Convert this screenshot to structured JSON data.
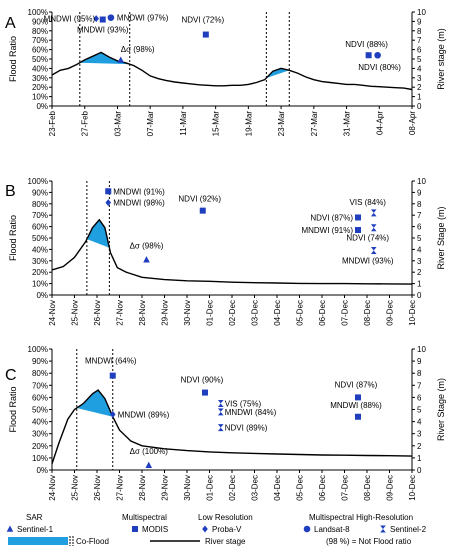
{
  "colors": {
    "fill": "#1f9fe0",
    "marker": "#1f3fbf",
    "line": "#000000"
  },
  "chart_data": [
    {
      "panel": "A",
      "type": "line",
      "ylabel": "Flood Ratio",
      "y2label": "River stage (m)",
      "ylim": [
        0,
        100
      ],
      "y2lim": [
        0,
        10
      ],
      "ytick_labels": [
        "0%",
        "10%",
        "20%",
        "30%",
        "40%",
        "50%",
        "60%",
        "70%",
        "80%",
        "90%",
        "100%"
      ],
      "y2tick_labels": [
        "0",
        "1",
        "2",
        "3",
        "4",
        "5",
        "6",
        "7",
        "8",
        "9",
        "10"
      ],
      "xlim": [
        0,
        44
      ],
      "xtick_pos": [
        0,
        4,
        8,
        12,
        16,
        20,
        24,
        28,
        32,
        36,
        40,
        44
      ],
      "xtick_labels": [
        "23-Feb",
        "27-Feb",
        "03-Mar",
        "07-Mar",
        "11-Mar",
        "15-Mar",
        "19-Mar",
        "23-Mar",
        "27-Mar",
        "31-Mar",
        "04-Apr",
        "08-Apr"
      ],
      "river_stage": [
        [
          0,
          3.3
        ],
        [
          1,
          3.8
        ],
        [
          2,
          4.0
        ],
        [
          3,
          4.4
        ],
        [
          4,
          4.9
        ],
        [
          5,
          5.3
        ],
        [
          6,
          5.7
        ],
        [
          7,
          5.2
        ],
        [
          8,
          4.8
        ],
        [
          9,
          4.6
        ],
        [
          10,
          4.3
        ],
        [
          11,
          3.8
        ],
        [
          12,
          3.2
        ],
        [
          13,
          2.9
        ],
        [
          14,
          2.7
        ],
        [
          15,
          2.55
        ],
        [
          16,
          2.45
        ],
        [
          17,
          2.35
        ],
        [
          18,
          2.25
        ],
        [
          19,
          2.2
        ],
        [
          20,
          2.15
        ],
        [
          21,
          2.15
        ],
        [
          22,
          2.2
        ],
        [
          23,
          2.2
        ],
        [
          24,
          2.3
        ],
        [
          25,
          2.5
        ],
        [
          26,
          2.8
        ],
        [
          27,
          3.7
        ],
        [
          28,
          4.0
        ],
        [
          29,
          3.8
        ],
        [
          30,
          3.5
        ],
        [
          31,
          3.1
        ],
        [
          32,
          2.8
        ],
        [
          33,
          2.6
        ],
        [
          34,
          2.5
        ],
        [
          35,
          2.4
        ],
        [
          36,
          2.3
        ],
        [
          37,
          2.3
        ],
        [
          38,
          2.2
        ],
        [
          39,
          2.1
        ],
        [
          40,
          2.05
        ],
        [
          41,
          2.0
        ],
        [
          42,
          1.95
        ],
        [
          43,
          1.9
        ],
        [
          44,
          1.75
        ]
      ],
      "coflood_windows": [
        [
          3.4,
          9.5
        ],
        [
          26.2,
          29.0
        ]
      ],
      "observations": [
        {
          "x": 5.4,
          "y": 93,
          "marker": "diamond",
          "label": "MNDWI (95%)",
          "anchor": "end",
          "dx": -1,
          "dy": 3
        },
        {
          "x": 6.2,
          "y": 92,
          "marker": "square",
          "label": "MNDWI (93%)",
          "anchor": "middle",
          "dx": 0,
          "dy": 13
        },
        {
          "x": 7.2,
          "y": 94,
          "marker": "circle",
          "label": "MNDWI (97%)",
          "anchor": "start",
          "dx": 6,
          "dy": 3
        },
        {
          "x": 8.4,
          "y": 49,
          "marker": "triangle",
          "label": "Δσ (98%)",
          "anchor": "start",
          "dx": 0,
          "dy": -8
        },
        {
          "x": 18.8,
          "y": 76,
          "marker": "square",
          "label": "NDVI (72%)",
          "anchor": "middle",
          "dx": -3,
          "dy": -12
        },
        {
          "x": 38.7,
          "y": 54,
          "marker": "square",
          "label": "NDVI (88%)",
          "anchor": "middle",
          "dx": -2,
          "dy": -8
        },
        {
          "x": 39.8,
          "y": 54,
          "marker": "circle",
          "label": "NDVI (80%)",
          "anchor": "middle",
          "dx": 2,
          "dy": 15
        }
      ]
    },
    {
      "panel": "B",
      "type": "line",
      "ylabel": "Flood  Ratio",
      "y2label": "River Stage (m)",
      "ylim": [
        0,
        100
      ],
      "y2lim": [
        0,
        10
      ],
      "ytick_labels": [
        "0%",
        "10%",
        "20%",
        "30%",
        "40%",
        "50%",
        "60%",
        "70%",
        "80%",
        "90%",
        "100%"
      ],
      "y2tick_labels": [
        "0",
        "1",
        "2",
        "3",
        "4",
        "5",
        "6",
        "7",
        "8",
        "9",
        "10"
      ],
      "xlim": [
        0,
        16
      ],
      "xtick_pos": [
        0,
        1,
        2,
        3,
        4,
        5,
        6,
        7,
        8,
        9,
        10,
        11,
        12,
        13,
        14,
        15,
        16
      ],
      "xtick_labels": [
        "24-Nov",
        "25-Nov",
        "26-Nov",
        "27-Nov",
        "28-Nov",
        "29-Nov",
        "30-Nov",
        "01-Dec",
        "02-Dec",
        "03-Dec",
        "04-Dec",
        "05-Dec",
        "06-Dec",
        "07-Dec",
        "08-Dec",
        "09-Dec",
        "10-Dec"
      ],
      "river_stage": [
        [
          0,
          2.2
        ],
        [
          0.5,
          2.5
        ],
        [
          1.0,
          3.3
        ],
        [
          1.5,
          4.7
        ],
        [
          1.8,
          5.9
        ],
        [
          2.1,
          6.6
        ],
        [
          2.35,
          5.9
        ],
        [
          2.6,
          3.7
        ],
        [
          2.9,
          2.4
        ],
        [
          3.3,
          2.0
        ],
        [
          4,
          1.55
        ],
        [
          5,
          1.35
        ],
        [
          6,
          1.25
        ],
        [
          7,
          1.2
        ],
        [
          8,
          1.12
        ],
        [
          9,
          1.08
        ],
        [
          10,
          1.05
        ],
        [
          11,
          1.02
        ],
        [
          12,
          1.0
        ],
        [
          13,
          1.0
        ],
        [
          14,
          0.98
        ],
        [
          15,
          0.97
        ],
        [
          16,
          0.96
        ]
      ],
      "coflood_windows": [
        [
          1.55,
          2.55
        ]
      ],
      "observations": [
        {
          "x": 2.5,
          "y": 91,
          "marker": "square",
          "label": "MNDWI (91%)",
          "anchor": "start",
          "dx": 5,
          "dy": 3
        },
        {
          "x": 2.5,
          "y": 81,
          "marker": "diamond",
          "label": "MNDWI (98%)",
          "anchor": "start",
          "dx": 5,
          "dy": 3
        },
        {
          "x": 4.2,
          "y": 31,
          "marker": "triangle",
          "label": "Δσ (98%)",
          "anchor": "middle",
          "dx": 0,
          "dy": -11
        },
        {
          "x": 6.7,
          "y": 74,
          "marker": "square",
          "label": "NDVI (92%)",
          "anchor": "middle",
          "dx": -3,
          "dy": -9
        },
        {
          "x": 13.6,
          "y": 68,
          "marker": "square",
          "label": "NDVI (87%)",
          "anchor": "end",
          "dx": -5,
          "dy": 3
        },
        {
          "x": 13.6,
          "y": 57,
          "marker": "square",
          "label": "MNDWI (91%)",
          "anchor": "end",
          "dx": -5,
          "dy": 3
        },
        {
          "x": 14.3,
          "y": 72,
          "marker": "hourglass",
          "label": "VIS (84%)",
          "anchor": "middle",
          "dx": -6,
          "dy": -8
        },
        {
          "x": 14.3,
          "y": 59,
          "marker": "hourglass",
          "label": "NDVI (74%)",
          "anchor": "middle",
          "dx": -6,
          "dy": 13
        },
        {
          "x": 14.3,
          "y": 39,
          "marker": "hourglass",
          "label": "MNDWI (93%)",
          "anchor": "middle",
          "dx": -6,
          "dy": 13
        }
      ]
    },
    {
      "panel": "C",
      "type": "line",
      "ylabel": "Flood Ratio",
      "y2label": "River Stage (m)",
      "ylim": [
        0,
        100
      ],
      "y2lim": [
        0,
        10
      ],
      "ytick_labels": [
        "0%",
        "10%",
        "20%",
        "30%",
        "40%",
        "50%",
        "60%",
        "70%",
        "80%",
        "90%",
        "100%"
      ],
      "y2tick_labels": [
        "0",
        "1",
        "2",
        "3",
        "4",
        "5",
        "6",
        "7",
        "8",
        "9",
        "10"
      ],
      "xlim": [
        0,
        16
      ],
      "xtick_pos": [
        0,
        1,
        2,
        3,
        4,
        5,
        6,
        7,
        8,
        9,
        10,
        11,
        12,
        13,
        14,
        15,
        16
      ],
      "xtick_labels": [
        "24-Nov",
        "25-Nov",
        "26-Nov",
        "27-Nov",
        "28-Nov",
        "29-Nov",
        "30-Nov",
        "01-Dec",
        "02-Dec",
        "03-Dec",
        "04-Dec",
        "05-Dec",
        "06-Dec",
        "07-Dec",
        "08-Dec",
        "09-Dec",
        "10-Dec"
      ],
      "river_stage": [
        [
          0,
          0.5
        ],
        [
          0.3,
          2.2
        ],
        [
          0.7,
          4.2
        ],
        [
          1.0,
          5.0
        ],
        [
          1.4,
          5.5
        ],
        [
          1.8,
          6.3
        ],
        [
          2.05,
          6.6
        ],
        [
          2.35,
          5.9
        ],
        [
          2.7,
          4.4
        ],
        [
          3.0,
          3.3
        ],
        [
          3.5,
          2.4
        ],
        [
          4,
          2.0
        ],
        [
          5,
          1.75
        ],
        [
          6,
          1.6
        ],
        [
          7,
          1.5
        ],
        [
          8,
          1.42
        ],
        [
          9,
          1.37
        ],
        [
          10,
          1.32
        ],
        [
          11,
          1.28
        ],
        [
          12,
          1.24
        ],
        [
          13,
          1.22
        ],
        [
          14,
          1.2
        ],
        [
          15,
          1.18
        ],
        [
          16,
          1.15
        ]
      ],
      "coflood_windows": [
        [
          1.1,
          2.7
        ]
      ],
      "observations": [
        {
          "x": 2.7,
          "y": 78,
          "marker": "square",
          "label": "MNDWI (64%)",
          "anchor": "middle",
          "dx": -2,
          "dy": -12
        },
        {
          "x": 2.7,
          "y": 46,
          "marker": "diamond",
          "label": "MNDWI (89%)",
          "anchor": "start",
          "dx": 5,
          "dy": 3
        },
        {
          "x": 4.3,
          "y": 4,
          "marker": "triangle",
          "label": "Δσ (100%)",
          "anchor": "middle",
          "dx": 0,
          "dy": -11
        },
        {
          "x": 6.8,
          "y": 64,
          "marker": "square",
          "label": "NDVI (90%)",
          "anchor": "middle",
          "dx": -3,
          "dy": -10
        },
        {
          "x": 7.5,
          "y": 55,
          "marker": "hourglass",
          "label": "VIS (75%)",
          "anchor": "start",
          "dx": 4,
          "dy": 3
        },
        {
          "x": 7.5,
          "y": 48,
          "marker": "hourglass",
          "label": "MNDWI (84%)",
          "anchor": "start",
          "dx": 4,
          "dy": 3
        },
        {
          "x": 7.5,
          "y": 35,
          "marker": "hourglass",
          "label": "NDVI (89%)",
          "anchor": "start",
          "dx": 4,
          "dy": 3
        },
        {
          "x": 13.6,
          "y": 60,
          "marker": "square",
          "label": "NDVI (87%)",
          "anchor": "middle",
          "dx": -2,
          "dy": -10
        },
        {
          "x": 13.6,
          "y": 44,
          "marker": "square",
          "label": "MNDWI (88%)",
          "anchor": "middle",
          "dx": -2,
          "dy": -9
        }
      ]
    }
  ],
  "legend": {
    "sar_title": "SAR",
    "sar_sensor": "Sentinel-1",
    "multispectral_title": "Multispectral",
    "multispectral_sensor": "MODIS",
    "lowres_title": "Low Resolution",
    "lowres_sensor": "Proba-V",
    "highres_title": "Multispectral High-Resolution",
    "landsat": "Landsat-8",
    "sentinel2": "Sentinel-2",
    "coflood": "Co-Flood",
    "river_stage": "River stage",
    "note": "(98 %) = Not Flood ratio"
  }
}
